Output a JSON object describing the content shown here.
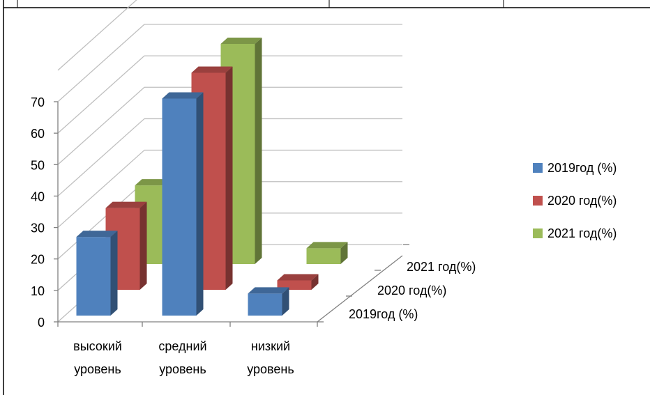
{
  "chart_data": {
    "type": "bar",
    "title": "",
    "xlabel": "",
    "ylabel": "",
    "ylim": [
      0,
      70
    ],
    "yticks": [
      "0",
      "10",
      "20",
      "30",
      "40",
      "50",
      "60",
      "70"
    ],
    "categories": [
      "высокий уровень",
      "средний уровень",
      "низкий уровень"
    ],
    "category_lines": [
      [
        "высокий",
        "уровень"
      ],
      [
        "средний",
        "уровень"
      ],
      [
        "низкий",
        "уровень"
      ]
    ],
    "series": [
      {
        "name": "2019год (%)",
        "values": [
          25,
          69,
          7
        ]
      },
      {
        "name": "2020 год(%)",
        "values": [
          26,
          69,
          3
        ]
      },
      {
        "name": "2021 год(%)",
        "values": [
          25,
          70,
          5
        ]
      }
    ],
    "depth_labels": [
      "2021 год(%)",
      "2020 год(%)",
      "2019год (%)"
    ],
    "legend_entries": [
      "2019год (%)",
      "2020 год(%)",
      "2021 год(%)"
    ],
    "legend_position": "right",
    "grid": true,
    "projection": "3d",
    "colors": [
      "#4F81BD",
      "#C0504D",
      "#9BBB59"
    ]
  }
}
